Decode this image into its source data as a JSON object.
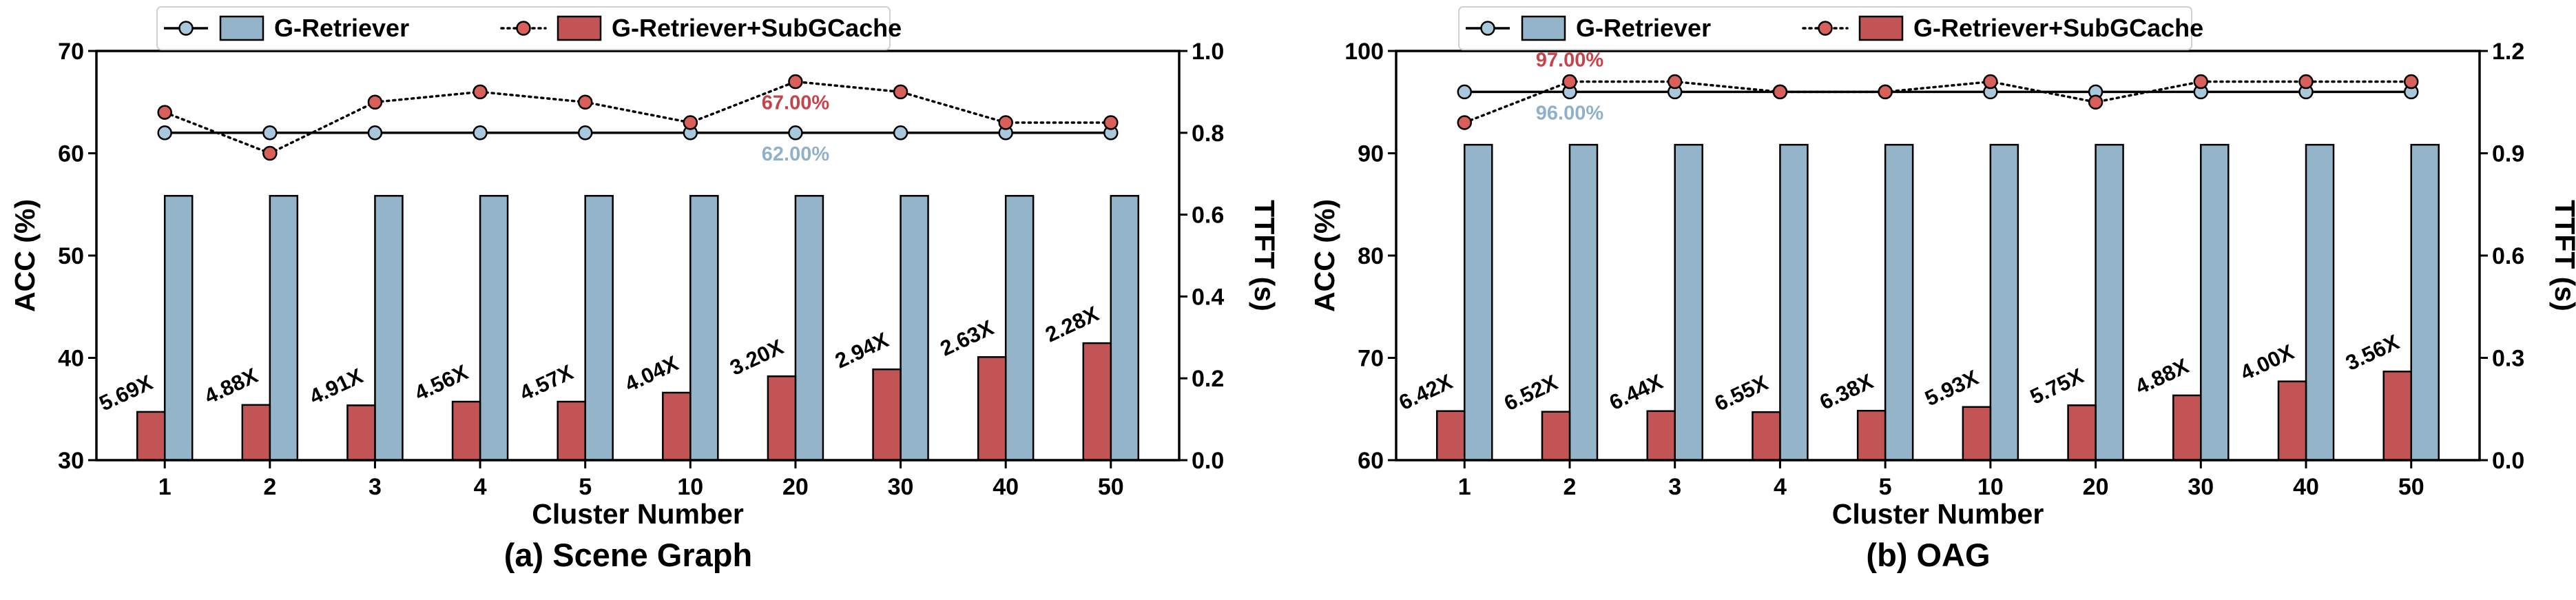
{
  "colors": {
    "g_retriever_bar": "#93b4c9",
    "subgcache_bar": "#c35456",
    "g_retriever_line_marker": "#a9c8dc",
    "subgcache_line_marker": "#d9605a",
    "g_retriever_annotation": "#8fb2ca",
    "subgcache_annotation": "#c5444a",
    "axis": "#000000"
  },
  "legend": {
    "entries": [
      "G-Retriever",
      "G-Retriever+SubGCache"
    ]
  },
  "chart_data": [
    {
      "type": "bar",
      "title": "(a) Scene Graph",
      "xlabel": "Cluster Number",
      "ylabel": "ACC (%)",
      "y2label": "TTFT (s)",
      "categories": [
        "1",
        "2",
        "3",
        "4",
        "5",
        "10",
        "20",
        "30",
        "40",
        "50"
      ],
      "ylim": [
        30,
        70
      ],
      "yticks": [
        "30",
        "40",
        "50",
        "60",
        "70"
      ],
      "y2lim": [
        0.0,
        1.0
      ],
      "y2ticks": [
        "0.0",
        "0.2",
        "0.4",
        "0.6",
        "0.8",
        "1.0"
      ],
      "bar_series": [
        {
          "name": "G-Retriever",
          "axis": "right",
          "values": [
            0.646,
            0.646,
            0.646,
            0.646,
            0.646,
            0.646,
            0.646,
            0.646,
            0.646,
            0.646
          ]
        },
        {
          "name": "G-Retriever+SubGCache",
          "axis": "right",
          "values": [
            0.118,
            0.135,
            0.134,
            0.143,
            0.143,
            0.165,
            0.205,
            0.222,
            0.252,
            0.286
          ]
        }
      ],
      "line_series": [
        {
          "name": "G-Retriever",
          "axis": "left",
          "style": "solid",
          "values": [
            62,
            62,
            62,
            62,
            62,
            62,
            62,
            62,
            62,
            62
          ]
        },
        {
          "name": "G-Retriever+SubGCache",
          "axis": "left",
          "style": "dotted",
          "values": [
            64,
            60,
            65,
            66,
            65,
            63,
            67,
            66,
            63,
            63
          ]
        }
      ],
      "speedup_labels": [
        "5.69X",
        "4.88X",
        "4.91X",
        "4.56X",
        "4.57X",
        "4.04X",
        "3.20X",
        "2.94X",
        "2.63X",
        "2.28X"
      ],
      "annotations": [
        {
          "text": "67.00%",
          "series": "G-Retriever+SubGCache",
          "category": "20",
          "value": 67,
          "placement": "below"
        },
        {
          "text": "62.00%",
          "series": "G-Retriever",
          "category": "20",
          "value": 62,
          "placement": "below"
        }
      ]
    },
    {
      "type": "bar",
      "title": "(b) OAG",
      "xlabel": "Cluster Number",
      "ylabel": "ACC (%)",
      "y2label": "TTFT (s)",
      "categories": [
        "1",
        "2",
        "3",
        "4",
        "5",
        "10",
        "20",
        "30",
        "40",
        "50"
      ],
      "ylim": [
        60,
        100
      ],
      "yticks": [
        "60",
        "70",
        "80",
        "90",
        "100"
      ],
      "y2lim": [
        0.0,
        1.2
      ],
      "y2ticks": [
        "0.0",
        "0.3",
        "0.6",
        "0.9",
        "1.2"
      ],
      "bar_series": [
        {
          "name": "G-Retriever",
          "axis": "right",
          "values": [
            0.925,
            0.925,
            0.925,
            0.925,
            0.925,
            0.925,
            0.925,
            0.925,
            0.925,
            0.925
          ]
        },
        {
          "name": "G-Retriever+SubGCache",
          "axis": "right",
          "values": [
            0.144,
            0.142,
            0.144,
            0.141,
            0.145,
            0.156,
            0.161,
            0.19,
            0.231,
            0.26
          ]
        }
      ],
      "line_series": [
        {
          "name": "G-Retriever",
          "axis": "left",
          "style": "solid",
          "values": [
            96,
            96,
            96,
            96,
            96,
            96,
            96,
            96,
            96,
            96
          ]
        },
        {
          "name": "G-Retriever+SubGCache",
          "axis": "left",
          "style": "dotted",
          "values": [
            93,
            97,
            97,
            96,
            96,
            97,
            95,
            97,
            97,
            97
          ]
        }
      ],
      "speedup_labels": [
        "6.42X",
        "6.52X",
        "6.44X",
        "6.55X",
        "6.38X",
        "5.93X",
        "5.75X",
        "4.88X",
        "4.00X",
        "3.56X"
      ],
      "annotations": [
        {
          "text": "97.00%",
          "series": "G-Retriever+SubGCache",
          "category": "2",
          "value": 97,
          "placement": "above"
        },
        {
          "text": "96.00%",
          "series": "G-Retriever",
          "category": "2",
          "value": 96,
          "placement": "below"
        }
      ]
    }
  ]
}
